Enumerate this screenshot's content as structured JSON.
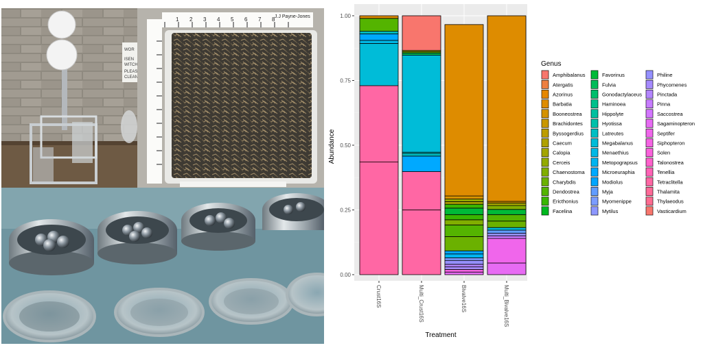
{
  "photos": {
    "ruler_label": "J.J Payne-Jones",
    "ruler_numbers": [
      "1",
      "2",
      "3",
      "4",
      "5",
      "6",
      "7",
      "8",
      "9",
      "10"
    ],
    "sign_lines": [
      "WOR",
      "ISEN",
      "WITCH",
      "PLEAS",
      "CLEAN"
    ]
  },
  "chart_data": {
    "type": "bar",
    "stacked": true,
    "xlabel": "Treatment",
    "ylabel": "Abundance",
    "ylim": [
      0,
      1
    ],
    "yticks": [
      "0.00",
      "0.25",
      "0.50",
      "0.75",
      "1.00"
    ],
    "categories": [
      "Crust16S",
      "Multi_Crust16S",
      "Bivalve16S",
      "Multi_Bivalve16S"
    ],
    "legend_title": "Genus",
    "legend_position": "right",
    "grid": true,
    "genera": [
      "Amphibalanus",
      "Atergatis",
      "Azorinus",
      "Barbatia",
      "Booneostrea",
      "Brachidontes",
      "Byssogerdius",
      "Caecum",
      "Calopia",
      "Cerceis",
      "Chaenostoma",
      "Charybdis",
      "Dendostrea",
      "Ericthonius",
      "Facelina",
      "Favorinus",
      "Fulvia",
      "Gonodactylaceus",
      "Haminoea",
      "Hippolyte",
      "Hyotissa",
      "Latreutes",
      "Megabalanus",
      "Menaethius",
      "Metopograpsus",
      "Microeuraphia",
      "Modiolus",
      "Myja",
      "Myomenippe",
      "Mytilus",
      "Philine",
      "Phycomenes",
      "Pinctada",
      "Pinna",
      "Saccostrea",
      "Sagaminopteron",
      "Septifer",
      "Siphopteron",
      "Solen",
      "Talonostrea",
      "Tenellia",
      "Tetraclitella",
      "Thalamita",
      "Thylaeodus",
      "Vasticardium"
    ],
    "colors": [
      "#F8766D",
      "#EE7F40",
      "#E58700",
      "#DE8C00",
      "#D49200",
      "#C99800",
      "#BD9D00",
      "#AFA100",
      "#A3A500",
      "#93AA00",
      "#81AE00",
      "#6BB100",
      "#54B400",
      "#39B600",
      "#00B81F",
      "#00BA38",
      "#00BC59",
      "#00BE6C",
      "#00C08B",
      "#00C09F",
      "#00C1AA",
      "#00BFC4",
      "#00BCD8",
      "#00B8E5",
      "#00B4F0",
      "#00A9FF",
      "#00A5FF",
      "#619CFF",
      "#7B9CFF",
      "#8D97FF",
      "#9590FF",
      "#A58AFF",
      "#B385FF",
      "#C77CFF",
      "#D376FF",
      "#E76BF3",
      "#F066EB",
      "#F564E3",
      "#FA62DB",
      "#FF61CC",
      "#FF63B6",
      "#FF67A4",
      "#FF6A98",
      "#FF6C91",
      "#F8766D"
    ],
    "stacks": [
      {
        "category": "Crust16S",
        "segments": [
          {
            "genus": "Tetraclitella",
            "value": 0.435
          },
          {
            "genus": "Tetraclitella",
            "value": 0.295
          },
          {
            "genus": "Megabalanus",
            "value": 0.163
          },
          {
            "genus": "Menaethius",
            "value": 0.012
          },
          {
            "genus": "Microeuraphia",
            "value": 0.025
          },
          {
            "genus": "Latreutes",
            "value": 0.01
          },
          {
            "genus": "Dendostrea",
            "value": 0.05
          },
          {
            "genus": "Barbatia",
            "value": 0.01
          }
        ]
      },
      {
        "category": "Multi_Crust16S",
        "segments": [
          {
            "genus": "Tetraclitella",
            "value": 0.25
          },
          {
            "genus": "Tetraclitella",
            "value": 0.148
          },
          {
            "genus": "Microeuraphia",
            "value": 0.06
          },
          {
            "genus": "Latreutes",
            "value": 0.01
          },
          {
            "genus": "Latreutes",
            "value": 0.005
          },
          {
            "genus": "Megabalanus",
            "value": 0.375
          },
          {
            "genus": "Fulvia",
            "value": 0.008
          },
          {
            "genus": "Dendostrea",
            "value": 0.005
          },
          {
            "genus": "Calopia",
            "value": 0.005
          },
          {
            "genus": "Vasticardium",
            "value": 0.134
          }
        ]
      },
      {
        "category": "Bivalve16S",
        "segments": [
          {
            "genus": "Sagaminopteron",
            "value": 0.01
          },
          {
            "genus": "Siphopteron",
            "value": 0.01
          },
          {
            "genus": "Phycomenes",
            "value": 0.01
          },
          {
            "genus": "Pinctada",
            "value": 0.01
          },
          {
            "genus": "Philine",
            "value": 0.015
          },
          {
            "genus": "Myomenippe",
            "value": 0.01
          },
          {
            "genus": "Metopograpsus",
            "value": 0.015
          },
          {
            "genus": "Modiolus",
            "value": 0.012
          },
          {
            "genus": "Charybdis",
            "value": 0.055
          },
          {
            "genus": "Dendostrea",
            "value": 0.045
          },
          {
            "genus": "Chaenostoma",
            "value": 0.02
          },
          {
            "genus": "Ericthonius",
            "value": 0.02
          },
          {
            "genus": "Favorinus",
            "value": 0.025
          },
          {
            "genus": "Ericthonius",
            "value": 0.015
          },
          {
            "genus": "Caecum",
            "value": 0.01
          },
          {
            "genus": "Cerceis",
            "value": 0.01
          },
          {
            "genus": "Booneostrea",
            "value": 0.012
          },
          {
            "genus": "Barbatia",
            "value": 0.662
          }
        ]
      },
      {
        "category": "Multi_Bivalve16S",
        "segments": [
          {
            "genus": "Sagaminopteron",
            "value": 0.045
          },
          {
            "genus": "Septifer",
            "value": 0.095
          },
          {
            "genus": "Pinna",
            "value": 0.01
          },
          {
            "genus": "Philine",
            "value": 0.01
          },
          {
            "genus": "Myja",
            "value": 0.012
          },
          {
            "genus": "Megabalanus",
            "value": 0.01
          },
          {
            "genus": "Charybdis",
            "value": 0.025
          },
          {
            "genus": "Dendostrea",
            "value": 0.025
          },
          {
            "genus": "Favorinus",
            "value": 0.02
          },
          {
            "genus": "Chaenostoma",
            "value": 0.015
          },
          {
            "genus": "Calopia",
            "value": 0.01
          },
          {
            "genus": "Booneostrea",
            "value": 0.006
          },
          {
            "genus": "Barbatia",
            "value": 0.717
          }
        ]
      }
    ]
  }
}
